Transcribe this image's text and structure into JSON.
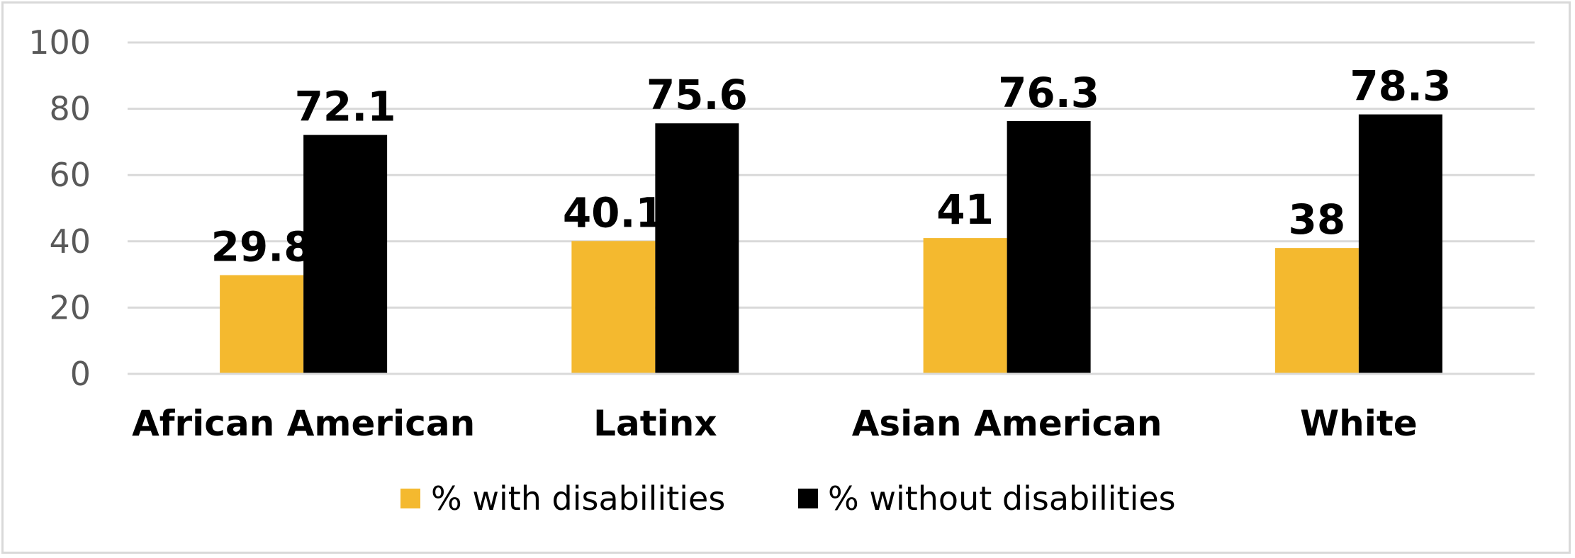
{
  "chart_data": {
    "type": "bar",
    "categories": [
      "African American",
      "Latinx",
      "Asian American",
      "White"
    ],
    "series": [
      {
        "name": "% with disabilities",
        "values": [
          29.8,
          40.1,
          41,
          38
        ],
        "color": "#f4b92f"
      },
      {
        "name": "% without disabilities",
        "values": [
          72.1,
          75.6,
          76.3,
          78.3
        ],
        "color": "#000000"
      }
    ],
    "data_labels": [
      [
        "29.8",
        "40.1",
        "41",
        "38"
      ],
      [
        "72.1",
        "75.6",
        "76.3",
        "78.3"
      ]
    ],
    "ylim": [
      0,
      100
    ],
    "yticks": [
      "0",
      "20",
      "40",
      "60",
      "80",
      "100"
    ],
    "grid": true,
    "legend_position": "bottom",
    "title": "",
    "xlabel": "",
    "ylabel": ""
  }
}
